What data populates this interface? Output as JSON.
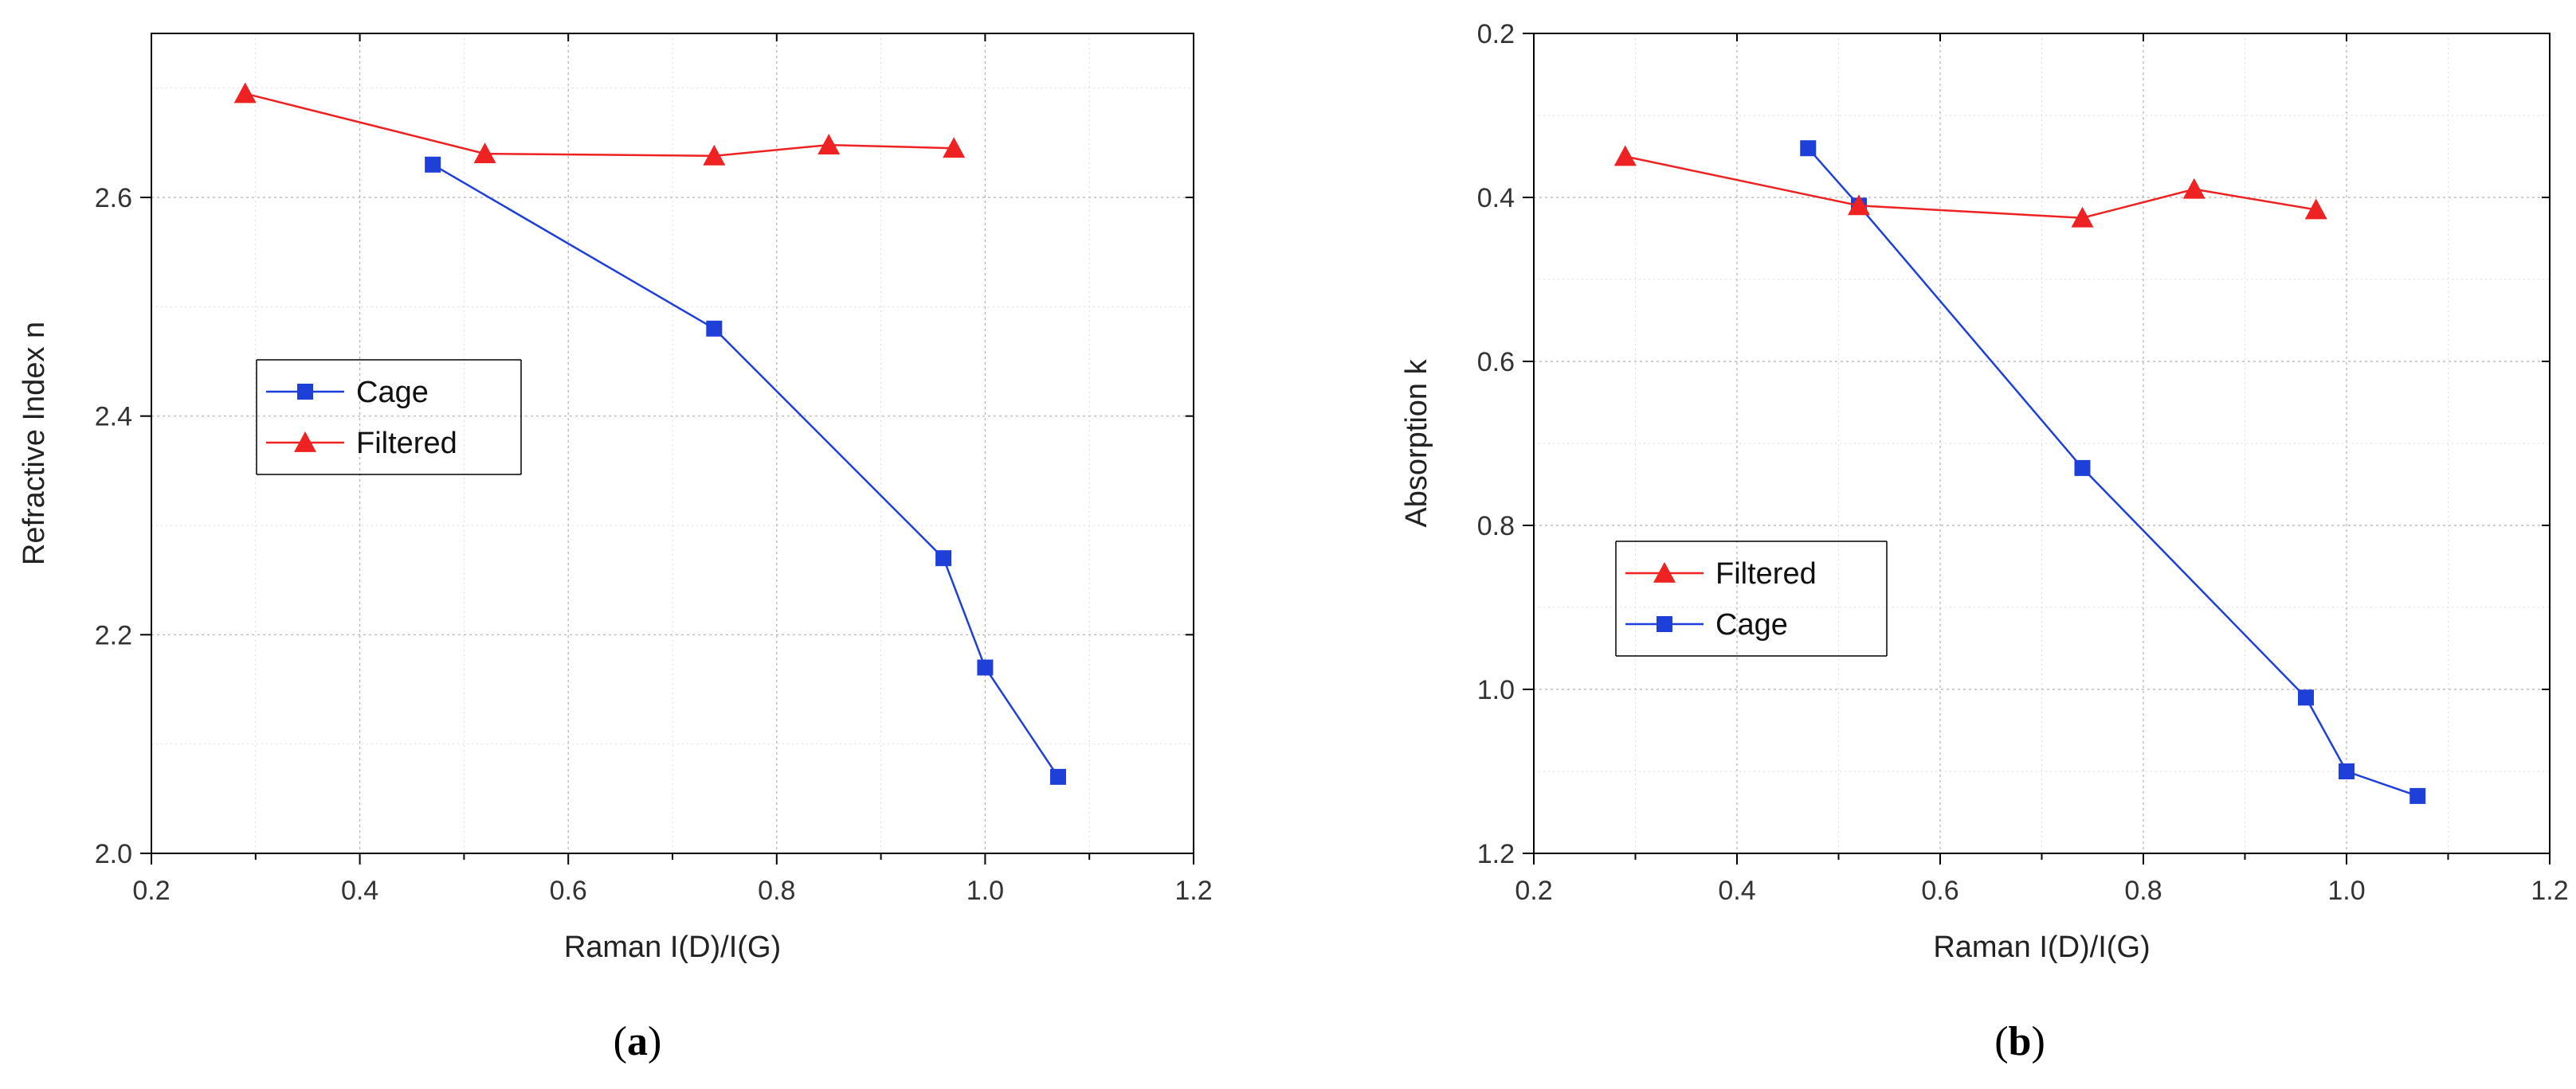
{
  "chart_data": [
    {
      "type": "line",
      "caption_letter": "a",
      "xlabel": "Raman I(D)/I(G)",
      "ylabel": "Refractive Index n",
      "xlim": [
        0.2,
        1.2
      ],
      "ylim": [
        2.0,
        2.75
      ],
      "y_inverted": false,
      "xticks": [
        0.2,
        0.4,
        0.6,
        0.8,
        1.0,
        1.2
      ],
      "xtick_labels": [
        "0.2",
        "0.4",
        "0.6",
        "0.8",
        "1.0",
        "1.2"
      ],
      "yticks": [
        2.0,
        2.2,
        2.4,
        2.6
      ],
      "ytick_labels": [
        "2.0",
        "2.2",
        "2.4",
        "2.6"
      ],
      "grid": true,
      "legend_position": "center-left",
      "legend_order": [
        "Cage",
        "Filtered"
      ],
      "series": [
        {
          "name": "Cage",
          "color": "#1f3fd9",
          "marker": "square",
          "x": [
            0.47,
            0.74,
            0.96,
            1.0,
            1.07
          ],
          "y": [
            2.63,
            2.48,
            2.27,
            2.17,
            2.07
          ]
        },
        {
          "name": "Filtered",
          "color": "#ee2222",
          "marker": "triangle",
          "x": [
            0.29,
            0.52,
            0.74,
            0.85,
            0.97
          ],
          "y": [
            2.695,
            2.64,
            2.638,
            2.648,
            2.645
          ]
        }
      ]
    },
    {
      "type": "line",
      "caption_letter": "b",
      "xlabel": "Raman I(D)/I(G)",
      "ylabel": "Absorption k",
      "xlim": [
        0.2,
        1.2
      ],
      "ylim": [
        0.2,
        1.2
      ],
      "y_inverted": true,
      "xticks": [
        0.2,
        0.4,
        0.6,
        0.8,
        1.0,
        1.2
      ],
      "xtick_labels": [
        "0.2",
        "0.4",
        "0.6",
        "0.8",
        "1.0",
        "1.2"
      ],
      "yticks": [
        0.2,
        0.4,
        0.6,
        0.8,
        1.0,
        1.2
      ],
      "ytick_labels": [
        "0.2",
        "0.4",
        "0.6",
        "0.8",
        "1.0",
        "1.2"
      ],
      "grid": true,
      "legend_position": "center-left",
      "legend_order": [
        "Filtered",
        "Cage"
      ],
      "series": [
        {
          "name": "Cage",
          "color": "#1f3fd9",
          "marker": "square",
          "x": [
            0.47,
            0.52,
            0.74,
            0.96,
            1.0,
            1.07
          ],
          "y": [
            0.34,
            0.41,
            0.73,
            1.01,
            1.1,
            1.13
          ]
        },
        {
          "name": "Filtered",
          "color": "#ee2222",
          "marker": "triangle",
          "x": [
            0.29,
            0.52,
            0.74,
            0.85,
            0.97
          ],
          "y": [
            0.35,
            0.41,
            0.425,
            0.39,
            0.415
          ]
        }
      ]
    }
  ]
}
